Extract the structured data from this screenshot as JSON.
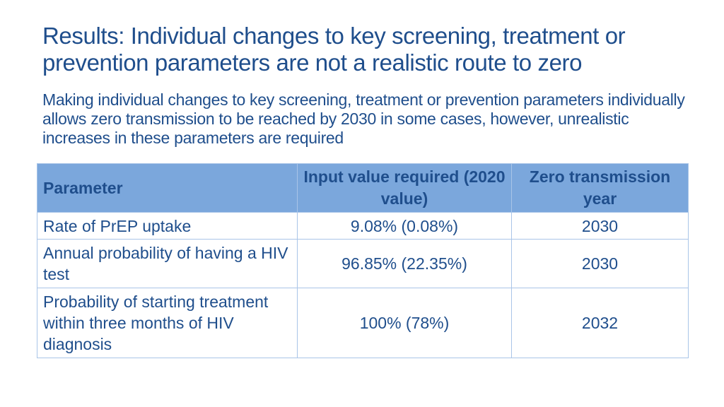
{
  "slide": {
    "title": "Results: Individual changes to key screening, treatment or prevention parameters are not a realistic route to zero",
    "subtitle": "Making individual changes to key screening, treatment or prevention parameters individually allows zero transmission to be reached by 2030 in some cases, however, unrealistic increases in these parameters are required"
  },
  "table": {
    "headers": {
      "parameter": "Parameter",
      "input_value": "Input value required (2020 value)",
      "zero_year": "Zero transmission year"
    },
    "rows": [
      {
        "parameter": "Rate of PrEP uptake",
        "input_value": "9.08% (0.08%)",
        "zero_year": "2030"
      },
      {
        "parameter": "Annual probability of having a HIV test",
        "input_value": "96.85% (22.35%)",
        "zero_year": "2030"
      },
      {
        "parameter": "Probability of starting treatment within three months of HIV diagnosis",
        "input_value": "100% (78%)",
        "zero_year": "2032"
      }
    ]
  },
  "colors": {
    "text": "#1F4E8C",
    "header_bg": "#7BA7DC",
    "border": "#A9C5E8"
  }
}
